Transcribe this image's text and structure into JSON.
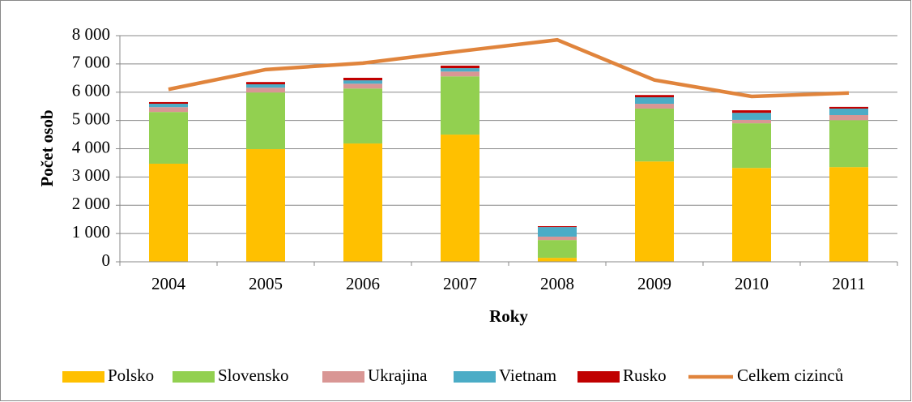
{
  "chart_data": {
    "type": "stacked-bar-line",
    "y_label": "Počet osob",
    "x_label": "Roky",
    "categories": [
      "2004",
      "2005",
      "2006",
      "2007",
      "2008",
      "2009",
      "2010",
      "2011"
    ],
    "series": [
      {
        "name": "Polsko",
        "color": "#ffc000",
        "values": [
          3470,
          3985,
          4185,
          4500,
          140,
          3550,
          3320,
          3350
        ]
      },
      {
        "name": "Slovensko",
        "color": "#92d050",
        "values": [
          1830,
          2005,
          1945,
          2060,
          630,
          1870,
          1580,
          1660
        ]
      },
      {
        "name": "Ukrajina",
        "color": "#d99694",
        "values": [
          170,
          170,
          170,
          170,
          120,
          170,
          120,
          180
        ]
      },
      {
        "name": "Vietnam",
        "color": "#4bacc6",
        "values": [
          120,
          120,
          120,
          120,
          340,
          230,
          250,
          230
        ]
      },
      {
        "name": "Rusko",
        "color": "#c00000",
        "values": [
          60,
          80,
          90,
          90,
          30,
          80,
          90,
          60
        ]
      },
      {
        "name": "Celkem cizinců",
        "color": "#e0843c",
        "kind": "line",
        "values": [
          6100,
          6800,
          7030,
          7450,
          7850,
          6430,
          5850,
          5970
        ]
      }
    ],
    "ylim": [
      0,
      8000
    ],
    "yticks": [
      0,
      {
        "value": 1000,
        "label": "1 000"
      },
      {
        "value": 2000,
        "label": "2 000"
      },
      {
        "value": 3000,
        "label": "3 000"
      },
      {
        "value": 4000,
        "label": "4 000"
      },
      {
        "value": 5000,
        "label": "5 000"
      },
      {
        "value": 6000,
        "label": "6 000"
      },
      {
        "value": 7000,
        "label": "7 000"
      },
      {
        "value": 8000,
        "label": "8 000"
      }
    ],
    "grid": true,
    "legend": "bottom"
  }
}
